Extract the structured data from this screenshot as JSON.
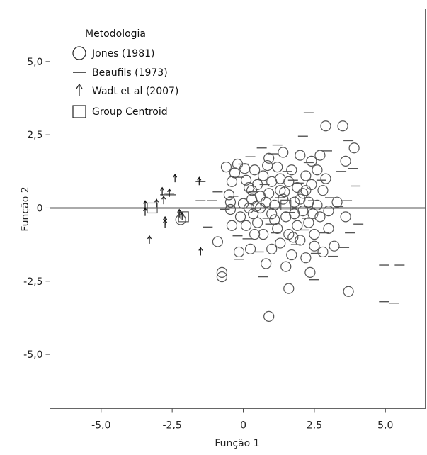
{
  "chart_data": {
    "type": "scatter",
    "xlabel": "Função 1",
    "ylabel": "Função 2",
    "xlim": [
      -6.8,
      6.4
    ],
    "ylim": [
      -6.85,
      6.8
    ],
    "xticks": [
      "-5,0",
      "-2,5",
      "0",
      "2,5",
      "5,0"
    ],
    "xtick_values": [
      -5,
      -2.5,
      0,
      2.5,
      5
    ],
    "yticks": [
      "5,0",
      "2,5",
      "0",
      "-2,5",
      "-5,0"
    ],
    "ytick_values": [
      5,
      2.5,
      0,
      -2.5,
      -5
    ],
    "reference_line_y": 0,
    "legend": {
      "placement": "top-left",
      "title": "Metodologia",
      "entries": [
        {
          "label": "Jones (1981)",
          "marker": "circle"
        },
        {
          "label": "Beaufils (1973)",
          "marker": "dash"
        },
        {
          "label": "Wadt et al (2007)",
          "marker": "arrow-up"
        },
        {
          "label": "Group Centroid",
          "marker": "square"
        }
      ]
    },
    "series": [
      {
        "name": "Jones (1981)",
        "marker": "circle",
        "color": "#555555",
        "points": [
          [
            -2.2,
            -0.4
          ],
          [
            -0.9,
            -1.15
          ],
          [
            -0.75,
            -2.2
          ],
          [
            -0.75,
            -2.35
          ],
          [
            -0.6,
            1.4
          ],
          [
            -0.5,
            0.45
          ],
          [
            -0.4,
            0.9
          ],
          [
            -0.3,
            1.2
          ],
          [
            -0.45,
            0.2
          ],
          [
            -0.45,
            -0.05
          ],
          [
            -0.4,
            -0.6
          ],
          [
            -0.2,
            1.5
          ],
          [
            -0.15,
            -1.5
          ],
          [
            0.0,
            0.15
          ],
          [
            0.05,
            1.35
          ],
          [
            0.1,
            0.95
          ],
          [
            0.1,
            -0.6
          ],
          [
            0.2,
            0.0
          ],
          [
            0.25,
            -1.4
          ],
          [
            0.3,
            0.6
          ],
          [
            0.3,
            0.3
          ],
          [
            0.35,
            -0.2
          ],
          [
            0.4,
            1.3
          ],
          [
            0.45,
            0.05
          ],
          [
            0.5,
            -0.5
          ],
          [
            0.5,
            0.8
          ],
          [
            0.6,
            0.4
          ],
          [
            0.7,
            1.1
          ],
          [
            0.7,
            -0.9
          ],
          [
            0.8,
            0.2
          ],
          [
            0.8,
            -1.9
          ],
          [
            0.9,
            0.5
          ],
          [
            0.9,
            1.7
          ],
          [
            1.0,
            -0.2
          ],
          [
            1.0,
            -1.4
          ],
          [
            1.0,
            0.9
          ],
          [
            1.1,
            0.1
          ],
          [
            1.2,
            1.4
          ],
          [
            1.2,
            -0.7
          ],
          [
            1.3,
            0.6
          ],
          [
            1.3,
            -1.2
          ],
          [
            1.4,
            1.9
          ],
          [
            1.4,
            0.3
          ],
          [
            1.5,
            -0.3
          ],
          [
            1.5,
            -2.0
          ],
          [
            1.6,
            0.9
          ],
          [
            1.6,
            -0.9
          ],
          [
            1.7,
            1.3
          ],
          [
            1.7,
            -1.6
          ],
          [
            1.8,
            0.2
          ],
          [
            1.9,
            -0.6
          ],
          [
            1.9,
            0.7
          ],
          [
            2.0,
            1.8
          ],
          [
            2.0,
            -1.1
          ],
          [
            2.1,
            -0.1
          ],
          [
            2.1,
            0.5
          ],
          [
            2.2,
            1.1
          ],
          [
            2.2,
            -1.7
          ],
          [
            2.3,
            -0.5
          ],
          [
            2.3,
            0.2
          ],
          [
            2.4,
            1.6
          ],
          [
            2.4,
            0.8
          ],
          [
            2.5,
            -0.9
          ],
          [
            2.5,
            -1.3
          ],
          [
            2.6,
            0.1
          ],
          [
            2.6,
            1.3
          ],
          [
            2.7,
            -0.3
          ],
          [
            2.8,
            0.6
          ],
          [
            2.8,
            -1.5
          ],
          [
            2.9,
            1.0
          ],
          [
            2.9,
            2.8
          ],
          [
            3.0,
            -0.7
          ],
          [
            3.0,
            -0.1
          ],
          [
            3.2,
            -1.3
          ],
          [
            3.3,
            0.2
          ],
          [
            3.5,
            2.8
          ],
          [
            3.6,
            1.6
          ],
          [
            3.6,
            -0.3
          ],
          [
            3.7,
            -2.85
          ],
          [
            3.9,
            2.05
          ],
          [
            0.9,
            -3.7
          ],
          [
            1.6,
            -2.75
          ],
          [
            -0.1,
            -0.3
          ],
          [
            0.6,
            0.0
          ],
          [
            1.8,
            -0.2
          ],
          [
            2.2,
            0.6
          ],
          [
            0.4,
            -0.9
          ],
          [
            1.1,
            -0.4
          ],
          [
            2.0,
            0.3
          ],
          [
            1.3,
            1.0
          ],
          [
            0.2,
            0.7
          ],
          [
            2.7,
            1.8
          ],
          [
            2.45,
            -0.2
          ],
          [
            1.45,
            0.55
          ],
          [
            0.85,
            1.45
          ],
          [
            1.75,
            -1.0
          ],
          [
            2.35,
            -2.2
          ]
        ]
      },
      {
        "name": "Beaufils (1973)",
        "marker": "dash",
        "color": "#555555",
        "points": [
          [
            -1.5,
            0.9
          ],
          [
            -1.25,
            -0.65
          ],
          [
            -1.1,
            0.25
          ],
          [
            -0.65,
            -0.05
          ],
          [
            -0.35,
            0.4
          ],
          [
            -0.2,
            -0.95
          ],
          [
            -0.15,
            1.05
          ],
          [
            -0.15,
            -1.75
          ],
          [
            0.0,
            1.5
          ],
          [
            0.15,
            -1.05
          ],
          [
            0.25,
            1.75
          ],
          [
            0.35,
            0.55
          ],
          [
            0.55,
            -1.5
          ],
          [
            0.7,
            -2.35
          ],
          [
            0.75,
            0.8
          ],
          [
            0.85,
            -0.35
          ],
          [
            1.05,
            1.85
          ],
          [
            1.15,
            -0.85
          ],
          [
            1.3,
            0.35
          ],
          [
            1.55,
            1.25
          ],
          [
            1.65,
            -0.15
          ],
          [
            1.85,
            -1.25
          ],
          [
            1.95,
            0.85
          ],
          [
            2.15,
            -0.75
          ],
          [
            2.3,
            1.55
          ],
          [
            2.45,
            0.25
          ],
          [
            2.55,
            -1.55
          ],
          [
            2.75,
            0.95
          ],
          [
            2.85,
            -0.85
          ],
          [
            2.95,
            1.95
          ],
          [
            3.05,
            0.35
          ],
          [
            3.15,
            -1.65
          ],
          [
            3.35,
            0.05
          ],
          [
            3.45,
            1.25
          ],
          [
            3.55,
            -1.35
          ],
          [
            3.65,
            0.25
          ],
          [
            3.85,
            1.35
          ],
          [
            3.95,
            0.75
          ],
          [
            4.05,
            -0.55
          ],
          [
            3.7,
            2.3
          ],
          [
            3.75,
            -0.85
          ],
          [
            2.3,
            3.25
          ],
          [
            2.1,
            2.45
          ],
          [
            2.5,
            -2.45
          ],
          [
            0.65,
            2.05
          ],
          [
            1.2,
            2.15
          ],
          [
            4.95,
            -1.95
          ],
          [
            5.5,
            -1.95
          ],
          [
            4.95,
            -3.2
          ],
          [
            5.3,
            -3.25
          ],
          [
            -2.75,
            0.45
          ],
          [
            -2.6,
            0.5
          ],
          [
            -2.55,
            0.45
          ],
          [
            -1.5,
            0.25
          ],
          [
            -0.9,
            0.55
          ],
          [
            0.95,
            -0.55
          ],
          [
            1.75,
            0.95
          ],
          [
            2.25,
            -0.35
          ]
        ]
      },
      {
        "name": "Wadt et al (2007)",
        "marker": "arrow-up",
        "color": "#111111",
        "points": [
          [
            -3.45,
            0.1
          ],
          [
            -3.45,
            -0.15
          ],
          [
            -3.3,
            -1.1
          ],
          [
            -2.85,
            0.55
          ],
          [
            -2.8,
            0.25
          ],
          [
            -2.75,
            -0.45
          ],
          [
            -2.75,
            -0.55
          ],
          [
            -2.6,
            0.5
          ],
          [
            -2.4,
            1.0
          ],
          [
            -2.2,
            -0.25
          ],
          [
            -2.15,
            -0.3
          ],
          [
            -1.55,
            0.9
          ],
          [
            -1.5,
            -1.5
          ],
          [
            -3.05,
            0.15
          ],
          [
            -2.25,
            -0.2
          ]
        ]
      },
      {
        "name": "Group Centroid",
        "marker": "square",
        "color": "#555555",
        "points": [
          [
            -3.2,
            0.0
          ],
          [
            -2.1,
            -0.3
          ],
          [
            1.5,
            0.1
          ]
        ]
      }
    ]
  }
}
